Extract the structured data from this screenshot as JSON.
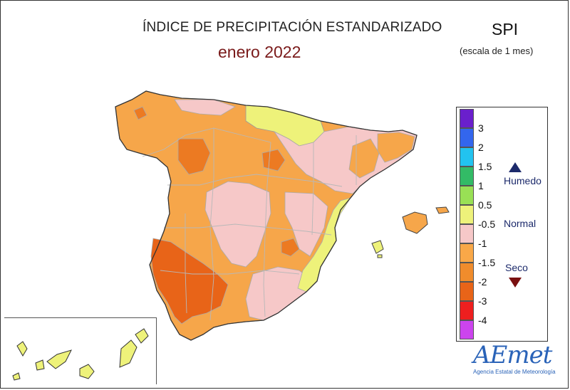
{
  "title": "ÍNDICE DE PRECIPITACIÓN ESTANDARIZADO",
  "subtitle": "enero 2022",
  "index_label": "SPI",
  "scale_note": "(escala de 1 mes)",
  "legend": {
    "classes": [
      {
        "color": "#6a1fcc"
      },
      {
        "color": "#3366ee"
      },
      {
        "color": "#22c3ef"
      },
      {
        "color": "#33bb66"
      },
      {
        "color": "#99e055"
      },
      {
        "color": "#eef27a"
      },
      {
        "color": "#f6c8c8"
      },
      {
        "color": "#f9a848"
      },
      {
        "color": "#f08c2c"
      },
      {
        "color": "#e86418"
      },
      {
        "color": "#ee1f1f"
      },
      {
        "color": "#cc44ee"
      }
    ],
    "ticks": [
      "3",
      "2",
      "1.5",
      "1",
      "0.5",
      "-0.5",
      "-1",
      "-1.5",
      "-2",
      "-3",
      "-4"
    ],
    "categories": {
      "humid": "Humedo",
      "normal": "Normal",
      "dry": "Seco"
    }
  },
  "logo": {
    "text": "AEmet",
    "caption": "Agencia Estatal de Meteorología"
  },
  "colors": {
    "spi_minus05_to_minus1": "#f9a848",
    "spi_minus1_to_minus15": "#f08c2c",
    "spi_minus15_to_minus2": "#e86418",
    "spi_normal": "#f6c8c8",
    "spi_05_to_minus05": "#eef27a"
  }
}
